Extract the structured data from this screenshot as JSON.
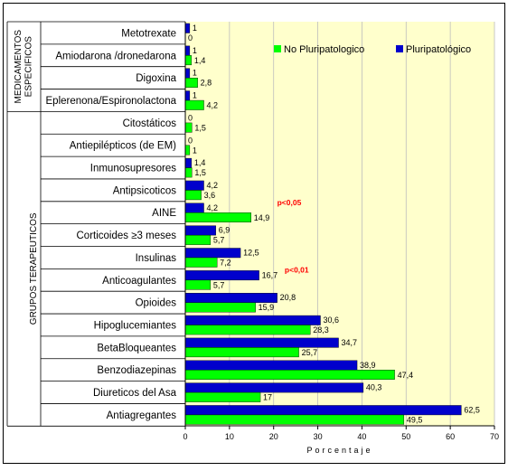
{
  "colors": {
    "plot_bg": "#FFFFCC",
    "no_pluri": "#00FF00",
    "pluri": "#0000CC",
    "annotation": "#FF0000",
    "frame": "#000000"
  },
  "chart_data": {
    "type": "bar",
    "orientation": "horizontal",
    "xlabel": "Porcentaje",
    "xlim": [
      0,
      70
    ],
    "xticks": [
      0,
      10,
      20,
      30,
      40,
      50,
      60,
      70
    ],
    "grid": "vertical",
    "legend_position": "top",
    "group_labels": [
      "MEDICAMENTOS ESPECIFICOS",
      "GRUPOS TERAPEUTICOS"
    ],
    "categories": [
      "Metotrexate",
      "Amiodarona /dronedarona",
      "Digoxina",
      "Eplerenona/Espironolactona",
      "Citostáticos",
      "Antiepilépticos (de EM)",
      "Inmunosupresores",
      "Antipsicoticos",
      "AINE",
      "Corticoides ≥3 meses",
      "Insulinas",
      "Anticoagulantes",
      "Opioides",
      "Hipoglucemiantes",
      "BetaBloqueantes",
      "Benzodiazepinas",
      "Diureticos del Asa",
      "Antiagregantes"
    ],
    "category_group": [
      0,
      0,
      0,
      0,
      1,
      1,
      1,
      1,
      1,
      1,
      1,
      1,
      1,
      1,
      1,
      1,
      1,
      1
    ],
    "series": [
      {
        "name": "Pluripatológico",
        "values": [
          1,
          1,
          1,
          1,
          0,
          0,
          1.4,
          4.2,
          4.2,
          6.9,
          12.5,
          16.7,
          20.8,
          30.6,
          34.7,
          38.9,
          40.3,
          62.5
        ],
        "labels": [
          "1",
          "1",
          "1",
          "1",
          "0",
          "0",
          "1,4",
          "4,2",
          "4,2",
          "6,9",
          "12,5",
          "16,7",
          "20,8",
          "30,6",
          "34,7",
          "38,9",
          "40,3",
          "62,5"
        ]
      },
      {
        "name": "No Pluripatologico",
        "values": [
          0,
          1.4,
          2.8,
          4.2,
          1.5,
          1,
          1.5,
          3.6,
          14.9,
          5.7,
          7.2,
          5.7,
          15.9,
          28.3,
          25.7,
          47.4,
          17,
          49.5
        ],
        "labels": [
          "0",
          "1,4",
          "2,8",
          "4,2",
          "1,5",
          "1",
          "1,5",
          "3,6",
          "14,9",
          "5,7",
          "7,2",
          "5,7",
          "15,9",
          "28,3",
          "25,7",
          "47,4",
          "17",
          "49,5"
        ]
      }
    ],
    "annotations": [
      {
        "category": "AINE",
        "text": "p<0,05"
      },
      {
        "category": "Anticoagulantes",
        "text": "p<0,01"
      }
    ]
  }
}
